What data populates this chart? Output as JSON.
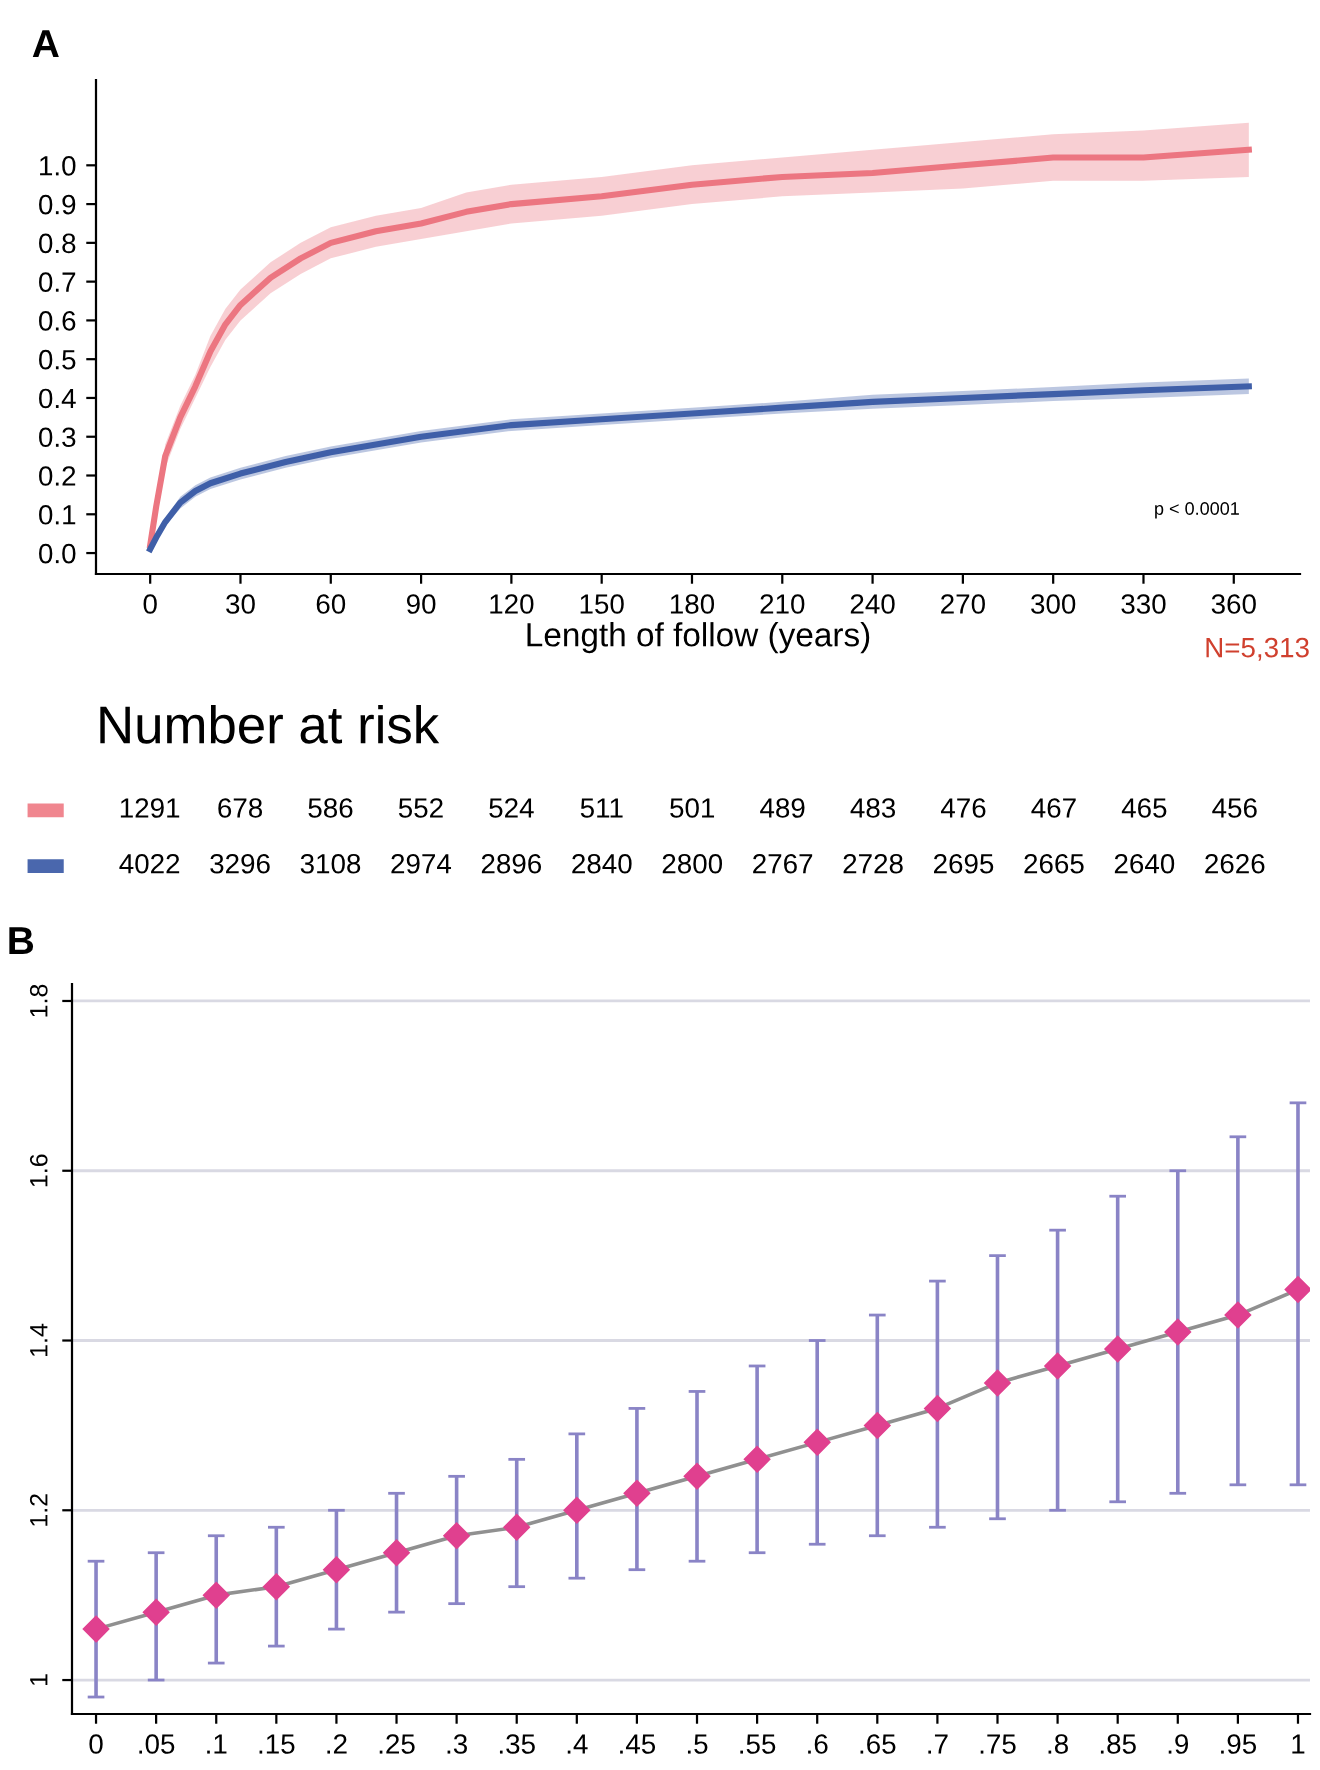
{
  "chart_data": [
    {
      "type": "line",
      "title": "A",
      "xlabel": "Length of follow (years)",
      "xlim": [
        -18,
        382
      ],
      "ylim": [
        -0.054,
        1.22
      ],
      "xticks": [
        0,
        30,
        60,
        90,
        120,
        150,
        180,
        210,
        240,
        270,
        300,
        330,
        360
      ],
      "yticks": [
        {
          "value": 0,
          "label": "0.0"
        },
        0.1,
        0.2,
        0.3,
        0.4,
        0.5,
        0.6,
        0.7,
        0.8,
        0.9,
        {
          "value": 1,
          "label": "1.0"
        }
      ],
      "grid": false,
      "legend": false,
      "series": [
        {
          "color": "#ec7681",
          "x": [
            0,
            2,
            5,
            10,
            15,
            20,
            25,
            30,
            40,
            50,
            60,
            75,
            90,
            105,
            120,
            150,
            180,
            210,
            240,
            270,
            300,
            330,
            365
          ],
          "values": [
            0.02,
            0.12,
            0.25,
            0.35,
            0.43,
            0.52,
            0.59,
            0.64,
            0.71,
            0.76,
            0.8,
            0.83,
            0.85,
            0.88,
            0.9,
            0.92,
            0.95,
            0.97,
            0.98,
            1.0,
            1.02,
            1.02,
            1.04
          ],
          "lower": [
            0.01,
            0.1,
            0.22,
            0.32,
            0.4,
            0.48,
            0.55,
            0.6,
            0.67,
            0.72,
            0.76,
            0.79,
            0.81,
            0.83,
            0.85,
            0.87,
            0.9,
            0.92,
            0.93,
            0.94,
            0.96,
            0.96,
            0.97
          ],
          "upper": [
            0.03,
            0.14,
            0.28,
            0.38,
            0.46,
            0.56,
            0.63,
            0.68,
            0.75,
            0.8,
            0.84,
            0.87,
            0.89,
            0.93,
            0.95,
            0.97,
            1.0,
            1.02,
            1.04,
            1.06,
            1.08,
            1.09,
            1.11
          ]
        },
        {
          "color": "#3f5fa8",
          "x": [
            0,
            2,
            5,
            10,
            15,
            20,
            30,
            45,
            60,
            90,
            120,
            150,
            180,
            210,
            240,
            270,
            300,
            330,
            365
          ],
          "values": [
            0.01,
            0.04,
            0.08,
            0.13,
            0.16,
            0.18,
            0.205,
            0.235,
            0.26,
            0.3,
            0.33,
            0.345,
            0.36,
            0.375,
            0.39,
            0.4,
            0.41,
            0.42,
            0.43
          ],
          "lower": [
            0.0,
            0.03,
            0.07,
            0.115,
            0.145,
            0.165,
            0.19,
            0.22,
            0.245,
            0.285,
            0.315,
            0.33,
            0.345,
            0.36,
            0.372,
            0.382,
            0.392,
            0.4,
            0.41
          ],
          "upper": [
            0.02,
            0.05,
            0.09,
            0.145,
            0.175,
            0.195,
            0.22,
            0.25,
            0.275,
            0.315,
            0.345,
            0.36,
            0.375,
            0.39,
            0.408,
            0.418,
            0.428,
            0.44,
            0.45
          ]
        }
      ],
      "annotations": [
        "p < 0.0001",
        "N=5,313"
      ]
    },
    {
      "type": "heatmap",
      "title": "Number at risk",
      "categories": [
        null,
        null,
        null,
        null,
        null,
        null,
        null,
        null,
        null,
        null,
        null,
        null,
        null
      ],
      "y_categories": [
        null,
        null
      ],
      "colors": [
        "#f0868f",
        "#4a67ad"
      ],
      "data_labels": true,
      "cells": [
        [
          1291,
          678,
          586,
          552,
          524,
          511,
          501,
          489,
          483,
          476,
          467,
          465,
          456
        ],
        [
          4022,
          3296,
          3108,
          2974,
          2896,
          2840,
          2800,
          2767,
          2728,
          2695,
          2665,
          2640,
          2626
        ]
      ]
    },
    {
      "type": "line",
      "title": "B",
      "x": [
        0,
        0.05,
        0.1,
        0.15,
        0.2,
        0.25,
        0.3,
        0.35,
        0.4,
        0.45,
        0.5,
        0.55,
        0.6,
        0.65,
        0.7,
        0.75,
        0.8,
        0.85,
        0.9,
        0.95,
        1
      ],
      "xlim": [
        -0.02,
        1.01
      ],
      "ylim": [
        0.96,
        1.82
      ],
      "xticks": [
        0,
        {
          "value": 0.05,
          "label": ".05"
        },
        {
          "value": 0.1,
          "label": ".1"
        },
        {
          "value": 0.15,
          "label": ".15"
        },
        {
          "value": 0.2,
          "label": ".2"
        },
        {
          "value": 0.25,
          "label": ".25"
        },
        {
          "value": 0.3,
          "label": ".3"
        },
        {
          "value": 0.35,
          "label": ".35"
        },
        {
          "value": 0.4,
          "label": ".4"
        },
        {
          "value": 0.45,
          "label": ".45"
        },
        {
          "value": 0.5,
          "label": ".5"
        },
        {
          "value": 0.55,
          "label": ".55"
        },
        {
          "value": 0.6,
          "label": ".6"
        },
        {
          "value": 0.65,
          "label": ".65"
        },
        {
          "value": 0.7,
          "label": ".7"
        },
        {
          "value": 0.75,
          "label": ".75"
        },
        {
          "value": 0.8,
          "label": ".8"
        },
        {
          "value": 0.85,
          "label": ".85"
        },
        {
          "value": 0.9,
          "label": ".9"
        },
        {
          "value": 0.95,
          "label": ".95"
        },
        1
      ],
      "yticks": [
        1,
        1.2,
        1.4,
        1.6,
        1.8
      ],
      "grid": "y",
      "marker": "diamond",
      "legend": false,
      "series": [
        {
          "color": "#e0408f",
          "values": [
            1.06,
            1.08,
            1.1,
            1.11,
            1.13,
            1.15,
            1.17,
            1.18,
            1.2,
            1.22,
            1.24,
            1.26,
            1.28,
            1.3,
            1.32,
            1.35,
            1.37,
            1.39,
            1.41,
            1.43,
            1.46
          ],
          "errors": [
            [
              0.98,
              1.14
            ],
            [
              1.0,
              1.15
            ],
            [
              1.02,
              1.17
            ],
            [
              1.04,
              1.18
            ],
            [
              1.06,
              1.2
            ],
            [
              1.08,
              1.22
            ],
            [
              1.09,
              1.24
            ],
            [
              1.11,
              1.26
            ],
            [
              1.12,
              1.29
            ],
            [
              1.13,
              1.32
            ],
            [
              1.14,
              1.34
            ],
            [
              1.15,
              1.37
            ],
            [
              1.16,
              1.4
            ],
            [
              1.17,
              1.43
            ],
            [
              1.18,
              1.47
            ],
            [
              1.19,
              1.5
            ],
            [
              1.2,
              1.53
            ],
            [
              1.21,
              1.57
            ],
            [
              1.22,
              1.6
            ],
            [
              1.23,
              1.64
            ],
            [
              1.23,
              1.68
            ]
          ]
        }
      ]
    }
  ]
}
